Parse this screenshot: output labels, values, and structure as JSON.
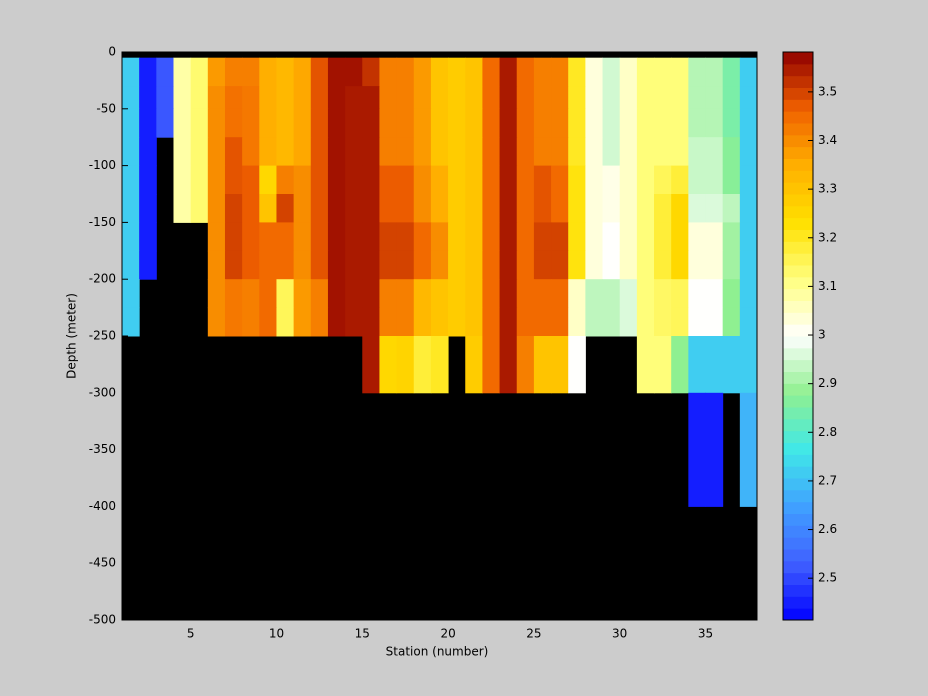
{
  "chart_data": {
    "type": "heatmap",
    "xlabel": "Station (number)",
    "ylabel": "Depth (meter)",
    "x_edges": [
      1,
      2,
      3,
      4,
      5,
      6,
      7,
      8,
      9,
      10,
      11,
      12,
      13,
      14,
      15,
      16,
      17,
      18,
      19,
      20,
      21,
      22,
      23,
      24,
      25,
      26,
      27,
      28,
      29,
      30,
      31,
      32,
      33,
      34,
      35,
      36,
      37,
      38
    ],
    "y_edges": [
      0,
      -5,
      -30,
      -50,
      -75,
      -100,
      -125,
      -150,
      -175,
      -200,
      -225,
      -250,
      -300,
      -400,
      -500
    ],
    "xlim": [
      1,
      38
    ],
    "xticks": [
      5,
      10,
      15,
      20,
      25,
      30,
      35
    ],
    "ylim": [
      -500,
      0
    ],
    "yticks": [
      -500,
      -450,
      -400,
      -350,
      -300,
      -250,
      -200,
      -150,
      -100,
      -50,
      0
    ],
    "colorbar": {
      "lim": [
        2.414,
        3.582
      ],
      "ticks": [
        2.5,
        2.6,
        2.7,
        2.8,
        2.9,
        3,
        3.1,
        3.2,
        3.3,
        3.4,
        3.5
      ]
    },
    "colormap": [
      "#0000ff",
      "#4060ff",
      "#40a0ff",
      "#40e8e8",
      "#90f090",
      "#ffffff",
      "#ffff80",
      "#ffe000",
      "#ffb000",
      "#f06000",
      "#900000"
    ],
    "background": "#000000",
    "z": [
      [
        null,
        null,
        null,
        null,
        null,
        null,
        null,
        null,
        null,
        null,
        null,
        null,
        null,
        null,
        null,
        null,
        null,
        null,
        null,
        null,
        null,
        null,
        null,
        null,
        null,
        null,
        null,
        null,
        null,
        null,
        null,
        null,
        null,
        null,
        null,
        null,
        null
      ],
      [
        2.72,
        2.45,
        2.52,
        3.08,
        3.13,
        3.38,
        3.42,
        3.42,
        3.35,
        3.33,
        3.36,
        3.48,
        3.56,
        3.56,
        3.52,
        3.42,
        3.42,
        3.38,
        3.3,
        3.28,
        3.3,
        3.45,
        3.55,
        3.45,
        3.42,
        3.42,
        3.2,
        3.03,
        2.95,
        3.05,
        3.12,
        3.12,
        3.12,
        2.92,
        2.92,
        2.85,
        2.72
      ],
      [
        2.72,
        2.45,
        2.52,
        3.08,
        3.13,
        3.4,
        3.44,
        3.43,
        3.35,
        3.33,
        3.36,
        3.48,
        3.56,
        3.55,
        3.55,
        3.42,
        3.42,
        3.38,
        3.3,
        3.28,
        3.3,
        3.45,
        3.55,
        3.45,
        3.42,
        3.42,
        3.2,
        3.03,
        2.95,
        3.05,
        3.12,
        3.12,
        3.12,
        2.92,
        2.92,
        2.85,
        2.72
      ],
      [
        2.72,
        2.45,
        2.52,
        3.08,
        3.13,
        3.4,
        3.44,
        3.43,
        3.35,
        3.33,
        3.36,
        3.48,
        3.56,
        3.55,
        3.55,
        3.42,
        3.42,
        3.38,
        3.3,
        3.28,
        3.3,
        3.45,
        3.55,
        3.45,
        3.42,
        3.42,
        3.2,
        3.03,
        2.95,
        3.05,
        3.12,
        3.12,
        3.12,
        2.92,
        2.92,
        2.85,
        2.72
      ],
      [
        2.72,
        2.45,
        null,
        3.08,
        3.13,
        3.4,
        3.48,
        3.43,
        3.35,
        3.33,
        3.36,
        3.48,
        3.56,
        3.55,
        3.55,
        3.42,
        3.42,
        3.38,
        3.3,
        3.28,
        3.3,
        3.45,
        3.55,
        3.45,
        3.42,
        3.42,
        3.2,
        3.03,
        2.95,
        3.05,
        3.12,
        3.12,
        3.12,
        2.94,
        2.94,
        2.87,
        2.72
      ],
      [
        2.72,
        2.45,
        null,
        3.08,
        3.13,
        3.4,
        3.48,
        3.47,
        3.25,
        3.42,
        3.4,
        3.48,
        3.56,
        3.55,
        3.55,
        3.47,
        3.47,
        3.4,
        3.35,
        3.28,
        3.3,
        3.45,
        3.55,
        3.45,
        3.48,
        3.45,
        3.22,
        3.03,
        3.02,
        3.05,
        3.12,
        3.15,
        3.18,
        2.94,
        2.94,
        2.87,
        2.72
      ],
      [
        2.72,
        2.45,
        null,
        3.08,
        3.13,
        3.4,
        3.5,
        3.47,
        3.3,
        3.5,
        3.4,
        3.48,
        3.56,
        3.55,
        3.55,
        3.47,
        3.47,
        3.4,
        3.35,
        3.28,
        3.3,
        3.45,
        3.55,
        3.45,
        3.48,
        3.45,
        3.22,
        3.03,
        3.02,
        3.05,
        3.12,
        3.18,
        3.25,
        2.96,
        2.96,
        2.93,
        2.72
      ],
      [
        2.72,
        2.45,
        null,
        null,
        null,
        3.4,
        3.5,
        3.47,
        3.45,
        3.45,
        3.4,
        3.48,
        3.56,
        3.55,
        3.55,
        3.5,
        3.5,
        3.45,
        3.4,
        3.28,
        3.3,
        3.45,
        3.55,
        3.45,
        3.5,
        3.5,
        3.22,
        3.03,
        3.0,
        3.05,
        3.12,
        3.18,
        3.25,
        3.03,
        3.03,
        2.9,
        2.72
      ],
      [
        2.72,
        2.45,
        null,
        null,
        null,
        3.4,
        3.5,
        3.47,
        3.45,
        3.45,
        3.4,
        3.48,
        3.56,
        3.55,
        3.55,
        3.5,
        3.5,
        3.45,
        3.4,
        3.28,
        3.3,
        3.45,
        3.55,
        3.45,
        3.5,
        3.5,
        3.22,
        3.03,
        3.0,
        3.05,
        3.12,
        3.18,
        3.25,
        3.03,
        3.03,
        2.9,
        2.72
      ],
      [
        2.72,
        null,
        null,
        null,
        null,
        3.4,
        3.43,
        3.42,
        3.45,
        3.15,
        3.38,
        3.42,
        3.56,
        3.55,
        3.55,
        3.42,
        3.42,
        3.33,
        3.3,
        3.28,
        3.3,
        3.45,
        3.55,
        3.45,
        3.45,
        3.45,
        3.05,
        2.93,
        2.93,
        2.96,
        3.12,
        3.14,
        3.15,
        3.0,
        3.0,
        2.88,
        2.72
      ],
      [
        2.72,
        null,
        null,
        null,
        null,
        3.4,
        3.43,
        3.42,
        3.45,
        3.15,
        3.38,
        3.42,
        3.56,
        3.55,
        3.55,
        3.42,
        3.42,
        3.33,
        3.3,
        3.28,
        3.3,
        3.45,
        3.55,
        3.45,
        3.45,
        3.45,
        3.05,
        2.93,
        2.93,
        2.96,
        3.12,
        3.14,
        3.15,
        3.0,
        3.0,
        2.88,
        2.72
      ],
      [
        null,
        null,
        null,
        null,
        null,
        null,
        null,
        null,
        null,
        null,
        null,
        null,
        null,
        null,
        3.55,
        3.25,
        3.26,
        3.18,
        3.2,
        null,
        3.28,
        3.45,
        3.55,
        3.42,
        3.3,
        3.3,
        3.0,
        null,
        null,
        null,
        3.12,
        3.12,
        2.88,
        2.72,
        2.72,
        2.72,
        2.72
      ],
      [
        null,
        null,
        null,
        null,
        null,
        null,
        null,
        null,
        null,
        null,
        null,
        null,
        null,
        null,
        null,
        null,
        null,
        null,
        null,
        null,
        null,
        null,
        null,
        null,
        null,
        null,
        null,
        null,
        null,
        null,
        null,
        null,
        null,
        2.45,
        2.45,
        null,
        2.68
      ],
      [
        null,
        null,
        null,
        null,
        null,
        null,
        null,
        null,
        null,
        null,
        null,
        null,
        null,
        null,
        null,
        null,
        null,
        null,
        null,
        null,
        null,
        null,
        null,
        null,
        null,
        null,
        null,
        null,
        null,
        null,
        null,
        null,
        null,
        null,
        null,
        null,
        null
      ]
    ]
  }
}
